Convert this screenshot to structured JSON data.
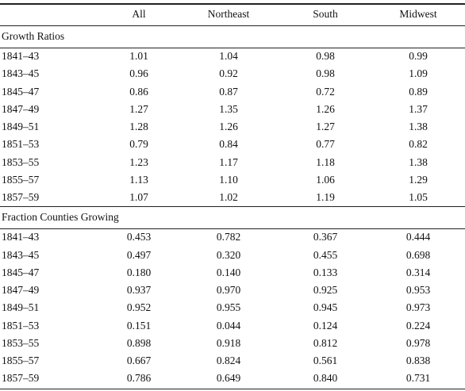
{
  "table": {
    "columns": [
      "All",
      "Northeast",
      "South",
      "Midwest"
    ],
    "sections": [
      {
        "title": "Growth Ratios",
        "rows": [
          {
            "label": "1841–43",
            "values": [
              "1.01",
              "1.04",
              "0.98",
              "0.99"
            ]
          },
          {
            "label": "1843–45",
            "values": [
              "0.96",
              "0.92",
              "0.98",
              "1.09"
            ]
          },
          {
            "label": "1845–47",
            "values": [
              "0.86",
              "0.87",
              "0.72",
              "0.89"
            ]
          },
          {
            "label": "1847–49",
            "values": [
              "1.27",
              "1.35",
              "1.26",
              "1.37"
            ]
          },
          {
            "label": "1849–51",
            "values": [
              "1.28",
              "1.26",
              "1.27",
              "1.38"
            ]
          },
          {
            "label": "1851–53",
            "values": [
              "0.79",
              "0.84",
              "0.77",
              "0.82"
            ]
          },
          {
            "label": "1853–55",
            "values": [
              "1.23",
              "1.17",
              "1.18",
              "1.38"
            ]
          },
          {
            "label": "1855–57",
            "values": [
              "1.13",
              "1.10",
              "1.06",
              "1.29"
            ]
          },
          {
            "label": "1857–59",
            "values": [
              "1.07",
              "1.02",
              "1.19",
              "1.05"
            ]
          }
        ]
      },
      {
        "title": "Fraction Counties Growing",
        "rows": [
          {
            "label": "1841–43",
            "values": [
              "0.453",
              "0.782",
              "0.367",
              "0.444"
            ]
          },
          {
            "label": "1843–45",
            "values": [
              "0.497",
              "0.320",
              "0.455",
              "0.698"
            ]
          },
          {
            "label": "1845–47",
            "values": [
              "0.180",
              "0.140",
              "0.133",
              "0.314"
            ]
          },
          {
            "label": "1847–49",
            "values": [
              "0.937",
              "0.970",
              "0.925",
              "0.953"
            ]
          },
          {
            "label": "1849–51",
            "values": [
              "0.952",
              "0.955",
              "0.945",
              "0.973"
            ]
          },
          {
            "label": "1851–53",
            "values": [
              "0.151",
              "0.044",
              "0.124",
              "0.224"
            ]
          },
          {
            "label": "1853–55",
            "values": [
              "0.898",
              "0.918",
              "0.812",
              "0.978"
            ]
          },
          {
            "label": "1855–57",
            "values": [
              "0.667",
              "0.824",
              "0.561",
              "0.838"
            ]
          },
          {
            "label": "1857–59",
            "values": [
              "0.786",
              "0.649",
              "0.840",
              "0.731"
            ]
          }
        ]
      }
    ]
  }
}
